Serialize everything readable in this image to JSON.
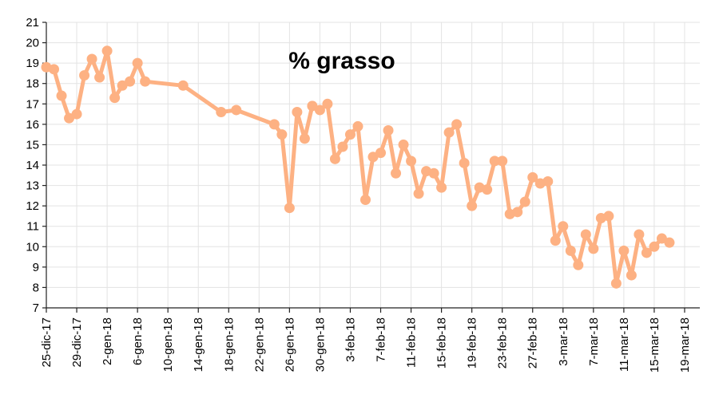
{
  "chart_data": {
    "type": "line",
    "title": "% grasso",
    "xlabel": "",
    "ylabel": "",
    "ylim": [
      7,
      21
    ],
    "yticks": [
      7,
      8,
      9,
      10,
      11,
      12,
      13,
      14,
      15,
      16,
      17,
      18,
      19,
      20,
      21
    ],
    "xlim": [
      "2017-12-25",
      "2018-03-21"
    ],
    "xtick_labels": [
      "25-dic-17",
      "29-dic-17",
      "2-gen-18",
      "6-gen-18",
      "10-gen-18",
      "14-gen-18",
      "18-gen-18",
      "22-gen-18",
      "26-gen-18",
      "30-gen-18",
      "3-feb-18",
      "7-feb-18",
      "11-feb-18",
      "15-feb-18",
      "19-feb-18",
      "23-feb-18",
      "27-feb-18",
      "3-mar-18",
      "7-mar-18",
      "11-mar-18",
      "15-mar-18",
      "19-mar-18"
    ],
    "xtick_dates": [
      "2017-12-25",
      "2017-12-29",
      "2018-01-02",
      "2018-01-06",
      "2018-01-10",
      "2018-01-14",
      "2018-01-18",
      "2018-01-22",
      "2018-01-26",
      "2018-01-30",
      "2018-02-03",
      "2018-02-07",
      "2018-02-11",
      "2018-02-15",
      "2018-02-19",
      "2018-02-23",
      "2018-02-27",
      "2018-03-03",
      "2018-03-07",
      "2018-03-11",
      "2018-03-15",
      "2018-03-19"
    ],
    "grid": true,
    "color": "#fdb183",
    "series": [
      {
        "x": [
          "2017-12-25",
          "2017-12-26",
          "2017-12-27",
          "2017-12-28",
          "2017-12-29",
          "2017-12-30",
          "2017-12-31",
          "2018-01-01",
          "2018-01-02",
          "2018-01-03",
          "2018-01-04",
          "2018-01-05",
          "2018-01-06",
          "2018-01-07",
          "2018-01-12",
          "2018-01-17",
          "2018-01-19",
          "2018-01-24",
          "2018-01-25",
          "2018-01-26",
          "2018-01-27",
          "2018-01-28",
          "2018-01-29",
          "2018-01-30",
          "2018-01-31",
          "2018-02-01",
          "2018-02-02",
          "2018-02-03",
          "2018-02-04",
          "2018-02-05",
          "2018-02-06",
          "2018-02-07",
          "2018-02-08",
          "2018-02-09",
          "2018-02-10",
          "2018-02-11",
          "2018-02-12",
          "2018-02-13",
          "2018-02-14",
          "2018-02-15",
          "2018-02-16",
          "2018-02-17",
          "2018-02-18",
          "2018-02-19",
          "2018-02-20",
          "2018-02-21",
          "2018-02-22",
          "2018-02-23",
          "2018-02-24",
          "2018-02-25",
          "2018-02-26",
          "2018-02-27",
          "2018-02-28",
          "2018-03-01",
          "2018-03-02",
          "2018-03-03",
          "2018-03-04",
          "2018-03-05",
          "2018-03-06",
          "2018-03-07",
          "2018-03-08",
          "2018-03-09",
          "2018-03-10",
          "2018-03-11",
          "2018-03-12",
          "2018-03-13",
          "2018-03-14",
          "2018-03-15",
          "2018-03-16",
          "2018-03-17"
        ],
        "y": [
          18.8,
          18.7,
          17.4,
          16.3,
          16.5,
          18.4,
          19.2,
          18.3,
          19.6,
          17.3,
          17.9,
          18.1,
          19.0,
          18.1,
          17.9,
          16.6,
          16.7,
          16.0,
          15.5,
          11.9,
          16.6,
          15.3,
          16.9,
          16.7,
          17.0,
          14.3,
          14.9,
          15.5,
          15.9,
          12.3,
          14.4,
          14.6,
          15.7,
          13.6,
          15.0,
          14.2,
          12.6,
          13.7,
          13.6,
          12.9,
          15.6,
          16.0,
          14.1,
          12.0,
          12.9,
          12.8,
          14.2,
          14.2,
          11.6,
          11.7,
          12.2,
          13.4,
          13.1,
          13.2,
          10.3,
          11.0,
          9.8,
          9.1,
          10.6,
          9.9,
          11.4,
          11.5,
          8.2,
          9.8,
          8.6,
          10.6,
          9.7,
          10.0,
          10.4,
          10.2
        ]
      }
    ]
  }
}
